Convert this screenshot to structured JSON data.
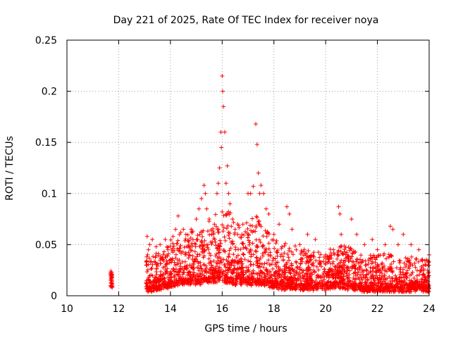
{
  "chart_data": {
    "type": "scatter",
    "title": "Day 221 of 2025, Rate Of TEC Index for receiver noya",
    "xlabel": "GPS time / hours",
    "ylabel": "ROTI / TECUs",
    "xlim": [
      10,
      24
    ],
    "ylim": [
      0,
      0.25
    ],
    "xticks": [
      10,
      12,
      14,
      16,
      18,
      20,
      22,
      24
    ],
    "yticks": [
      0,
      0.05,
      0.1,
      0.15,
      0.2,
      0.25
    ],
    "xtick_labels": [
      "10",
      "12",
      "14",
      "16",
      "18",
      "20",
      "22",
      "24"
    ],
    "ytick_labels": [
      "0",
      "0.05",
      "0.1",
      "0.15",
      "0.2",
      "0.25"
    ],
    "grid": true,
    "legend": "none",
    "marker": "+",
    "color": "#ff0000",
    "envelope": {
      "description": "approximate per-hour distribution of ROTI points (data units)",
      "hours": [
        11.7,
        13.1,
        13.5,
        14.0,
        14.5,
        15.0,
        15.5,
        16.0,
        16.5,
        17.0,
        17.5,
        18.0,
        18.5,
        19.0,
        19.5,
        20.0,
        20.5,
        21.0,
        21.5,
        22.0,
        22.5,
        23.0,
        23.5,
        24.0
      ],
      "base": [
        0.015,
        0.018,
        0.02,
        0.022,
        0.025,
        0.025,
        0.027,
        0.028,
        0.025,
        0.025,
        0.025,
        0.022,
        0.02,
        0.02,
        0.02,
        0.02,
        0.022,
        0.02,
        0.018,
        0.018,
        0.018,
        0.018,
        0.018,
        0.018
      ],
      "spread": [
        0.008,
        0.02,
        0.025,
        0.03,
        0.035,
        0.04,
        0.045,
        0.06,
        0.05,
        0.05,
        0.05,
        0.035,
        0.03,
        0.025,
        0.022,
        0.02,
        0.03,
        0.028,
        0.022,
        0.022,
        0.025,
        0.022,
        0.02,
        0.018
      ]
    },
    "series": [
      {
        "x": [
          11.7,
          11.72,
          11.74,
          11.7,
          11.73,
          11.71,
          13.1,
          13.15,
          13.12,
          13.2,
          13.3,
          13.45,
          13.6,
          13.8,
          13.9,
          14.1,
          14.2,
          14.3,
          14.35,
          14.4,
          14.5,
          14.6,
          14.8,
          15.0,
          15.1,
          15.2,
          15.3,
          15.35,
          15.4,
          15.5,
          15.6,
          15.7,
          15.8,
          15.85,
          15.9,
          15.95,
          15.97,
          16.0,
          16.02,
          16.05,
          16.1,
          16.15,
          16.2,
          16.25,
          16.3,
          16.4,
          16.5,
          16.6,
          16.8,
          17.0,
          17.1,
          17.2,
          17.3,
          17.35,
          17.4,
          17.45,
          17.5,
          17.6,
          17.7,
          17.8,
          18.0,
          18.2,
          18.5,
          18.6,
          18.7,
          19.0,
          19.3,
          19.6,
          20.0,
          20.3,
          20.5,
          20.55,
          20.6,
          21.0,
          21.2,
          21.5,
          21.8,
          22.0,
          22.3,
          22.5,
          22.6,
          22.8,
          23.0,
          23.3,
          23.6,
          23.9,
          24.0
        ],
        "y": [
          0.024,
          0.02,
          0.014,
          0.01,
          0.018,
          0.022,
          0.058,
          0.045,
          0.04,
          0.05,
          0.055,
          0.048,
          0.05,
          0.055,
          0.045,
          0.058,
          0.065,
          0.078,
          0.06,
          0.062,
          0.065,
          0.06,
          0.065,
          0.075,
          0.085,
          0.095,
          0.108,
          0.1,
          0.085,
          0.075,
          0.06,
          0.07,
          0.1,
          0.11,
          0.125,
          0.16,
          0.145,
          0.215,
          0.2,
          0.185,
          0.16,
          0.11,
          0.127,
          0.1,
          0.09,
          0.075,
          0.065,
          0.06,
          0.07,
          0.1,
          0.1,
          0.107,
          0.168,
          0.148,
          0.12,
          0.1,
          0.108,
          0.1,
          0.085,
          0.08,
          0.06,
          0.07,
          0.087,
          0.08,
          0.065,
          0.05,
          0.06,
          0.055,
          0.04,
          0.045,
          0.087,
          0.08,
          0.06,
          0.075,
          0.06,
          0.05,
          0.055,
          0.045,
          0.05,
          0.068,
          0.065,
          0.05,
          0.06,
          0.05,
          0.045,
          0.035,
          0.04
        ]
      }
    ]
  }
}
